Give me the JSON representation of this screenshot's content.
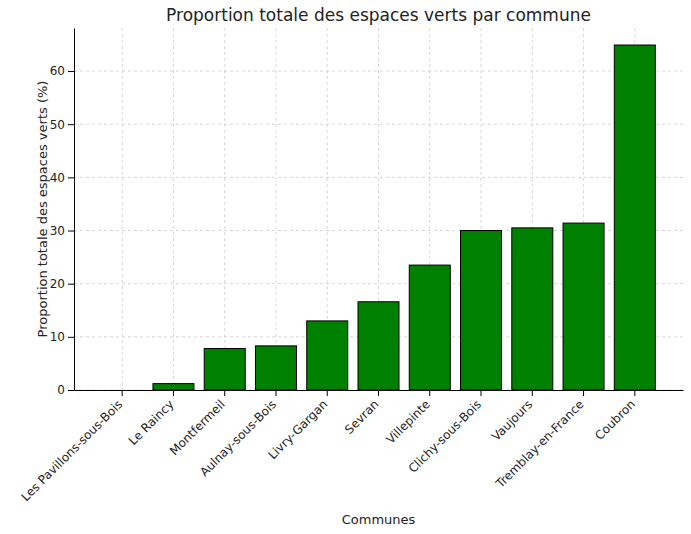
{
  "chart_data": {
    "type": "bar",
    "title": "Proportion totale des espaces verts par commune",
    "x_label": "Communes",
    "y_label": "Proportion totale des espaces verts (%)",
    "categories": [
      "Les Pavillons-sous-Bois",
      "Le Raincy",
      "Montfermeil",
      "Aulnay-sous-Bois",
      "Livry-Gargan",
      "Sevran",
      "Villepinte",
      "Clichy-sous-Bois",
      "Vaujours",
      "Tremblay-en-France",
      "Coubron"
    ],
    "values": [
      0,
      1.2,
      7.8,
      8.3,
      13.0,
      16.6,
      23.5,
      30.0,
      30.5,
      31.4,
      64.9
    ],
    "color": "#008000",
    "ylim": [
      0,
      68.1
    ],
    "yticks": [
      0,
      10,
      20,
      30,
      40,
      50,
      60
    ],
    "grid": true
  }
}
